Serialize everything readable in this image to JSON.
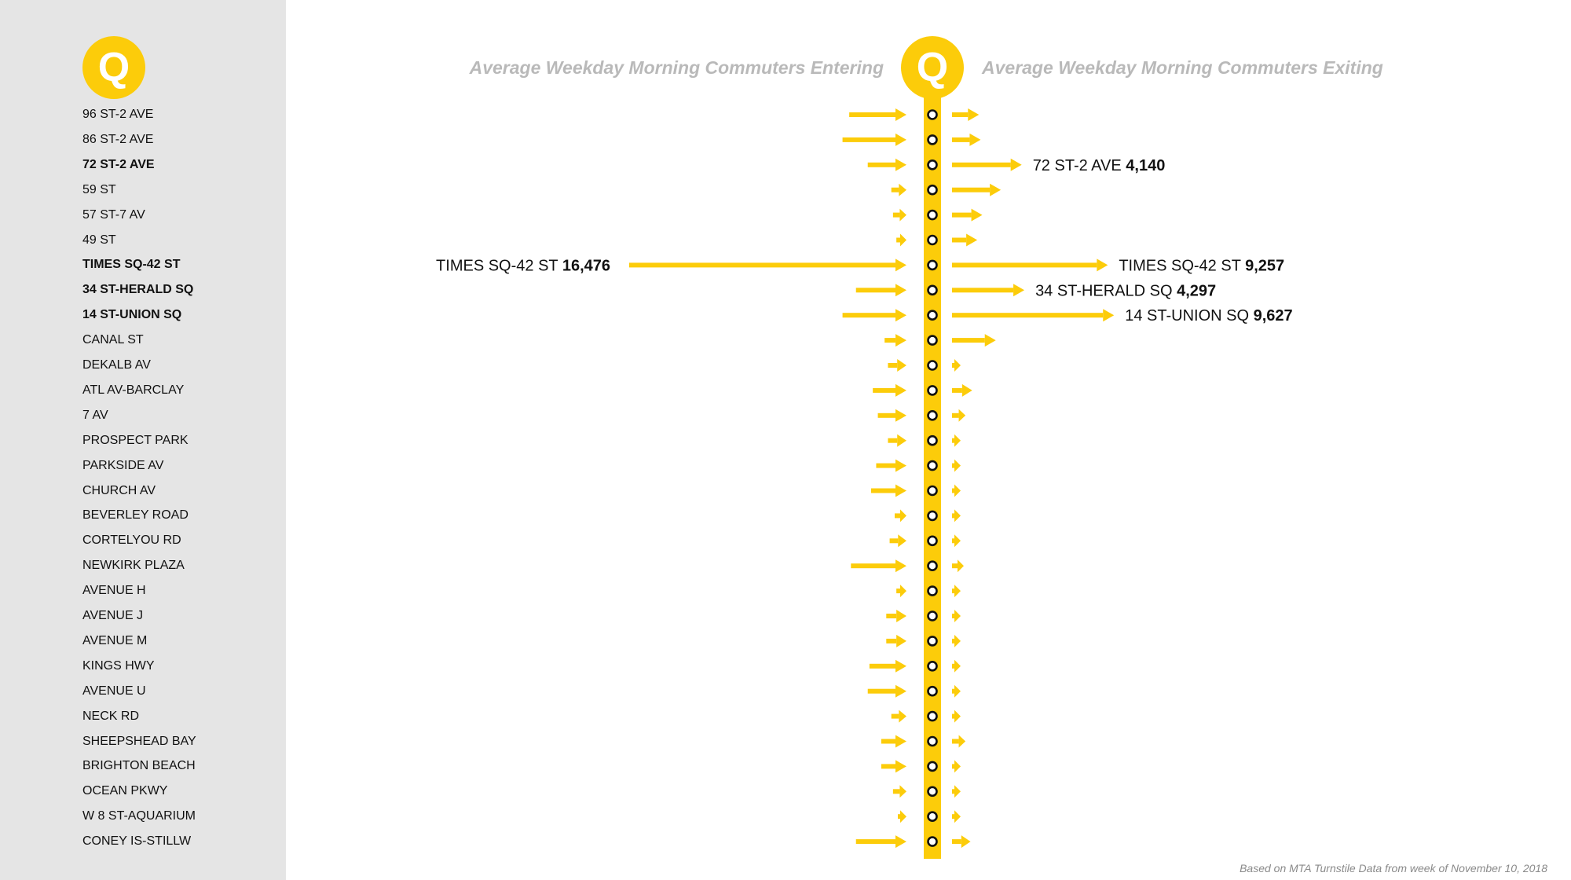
{
  "line_bullet": "Q",
  "colors": {
    "line": "#fccc0a",
    "sidebar": "#e5e5e5",
    "header": "#b9b9b9",
    "text": "#111111"
  },
  "header": {
    "entering": "Average Weekday Morning Commuters Entering",
    "exiting": "Average Weekday Morning Commuters Exiting"
  },
  "footnote": "Based on MTA Turnstile Data from week of November 10, 2018",
  "chart_data": {
    "type": "bar",
    "title": "",
    "xlabel": "",
    "ylabel": "",
    "categories": [
      "96 ST-2 AVE",
      "86 ST-2 AVE",
      "72 ST-2 AVE",
      "59 ST",
      "57 ST-7 AV",
      "49 ST",
      "TIMES SQ-42 ST",
      "34 ST-HERALD SQ",
      "14 ST-UNION SQ",
      "CANAL ST",
      "DEKALB AV",
      "ATL AV-BARCLAY",
      "7 AV",
      "PROSPECT PARK",
      "PARKSIDE AV",
      "CHURCH AV",
      "BEVERLEY ROAD",
      "CORTELYOU RD",
      "NEWKIRK PLAZA",
      "AVENUE H",
      "AVENUE J",
      "AVENUE M",
      "KINGS HWY",
      "AVENUE U",
      "NECK RD",
      "SHEEPSHEAD BAY",
      "BRIGHTON BEACH",
      "OCEAN PKWY",
      "W 8 ST-AQUARIUM",
      "CONEY IS-STILLW"
    ],
    "highlighted": [
      "72 ST-2 AVE",
      "TIMES SQ-42 ST",
      "34 ST-HERALD SQ",
      "14 ST-UNION SQ"
    ],
    "series": [
      {
        "name": "Average Weekday Morning Commuters Entering",
        "values": [
          3400,
          3800,
          2300,
          900,
          800,
          600,
          16476,
          3000,
          3800,
          1300,
          1100,
          2000,
          1700,
          1100,
          1800,
          2100,
          700,
          1000,
          3300,
          600,
          1200,
          1200,
          2200,
          2300,
          900,
          1500,
          1500,
          800,
          500,
          3000
        ]
      },
      {
        "name": "Average Weekday Morning Commuters Exiting",
        "values": [
          1600,
          1700,
          4140,
          2900,
          1800,
          1500,
          9257,
          4297,
          9627,
          2600,
          500,
          1200,
          800,
          400,
          400,
          400,
          200,
          200,
          700,
          200,
          400,
          400,
          500,
          300,
          200,
          800,
          300,
          200,
          200,
          1100
        ]
      }
    ],
    "labels": [
      {
        "station": "TIMES SQ-42 ST",
        "side": "entering",
        "value": "16,476"
      },
      {
        "station": "72 ST-2 AVE",
        "side": "exiting",
        "value": "4,140"
      },
      {
        "station": "TIMES SQ-42 ST",
        "side": "exiting",
        "value": "9,257"
      },
      {
        "station": "34 ST-HERALD SQ",
        "side": "exiting",
        "value": "4,297"
      },
      {
        "station": "14 ST-UNION SQ",
        "side": "exiting",
        "value": "9,627"
      }
    ]
  }
}
